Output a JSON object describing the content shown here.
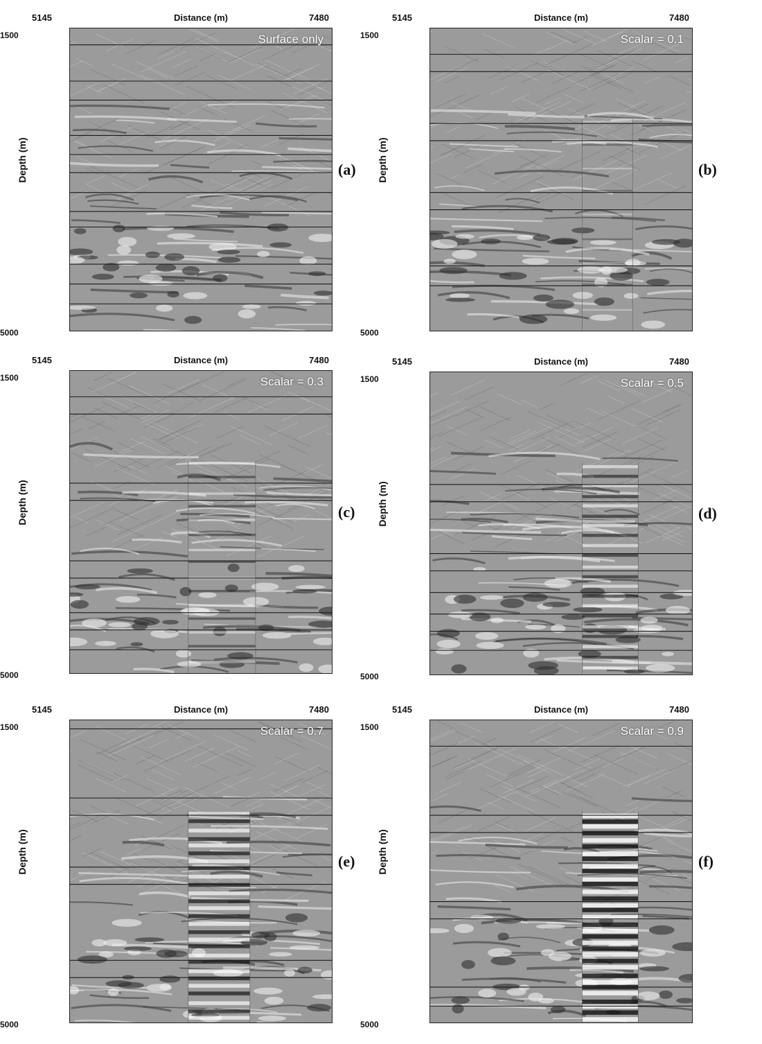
{
  "figure": {
    "x_axis": {
      "title": "Distance (m)",
      "min_label": "5145",
      "max_label": "7480"
    },
    "y_axis": {
      "title": "Depth (m)",
      "min_label": "1500",
      "max_label": "5000"
    },
    "panels": [
      {
        "letter": "(a)",
        "annotation": "Surface only",
        "horizons": [
          1690,
          2110,
          2330,
          2740,
          2960,
          3170,
          3400,
          3620,
          3800,
          4230,
          4460,
          4690
        ],
        "zone": null
      },
      {
        "letter": "(b)",
        "annotation": "Scalar = 0.1",
        "horizons": [
          1800,
          2000,
          2600,
          2800,
          3400,
          3600,
          4250,
          4480
        ],
        "zone": {
          "from": 6500,
          "to": 6950,
          "strength": 0.1
        }
      },
      {
        "letter": "(c)",
        "annotation": "Scalar = 0.3",
        "horizons": [
          1800,
          2000,
          2800,
          3000,
          3700,
          3900,
          4300,
          4500,
          4730
        ],
        "zone": {
          "from": 6200,
          "to": 6800,
          "strength": 0.3
        }
      },
      {
        "letter": "(d)",
        "annotation": "Scalar = 0.5",
        "horizons": [
          2800,
          3000,
          3600,
          3800,
          4050,
          4300,
          4500,
          4720
        ],
        "zone": {
          "from": 6500,
          "to": 7000,
          "strength": 0.5
        }
      },
      {
        "letter": "(e)",
        "annotation": "Scalar = 0.7",
        "horizons": [
          1600,
          2400,
          2600,
          3200,
          3400,
          4280,
          4480
        ],
        "zone": {
          "from": 6200,
          "to": 6750,
          "strength": 0.7
        }
      },
      {
        "letter": "(f)",
        "annotation": "Scalar = 0.9",
        "horizons": [
          1800,
          2600,
          2800,
          3600,
          3800,
          4590,
          4810
        ],
        "zone": {
          "from": 6500,
          "to": 7000,
          "strength": 0.9
        }
      }
    ]
  }
}
